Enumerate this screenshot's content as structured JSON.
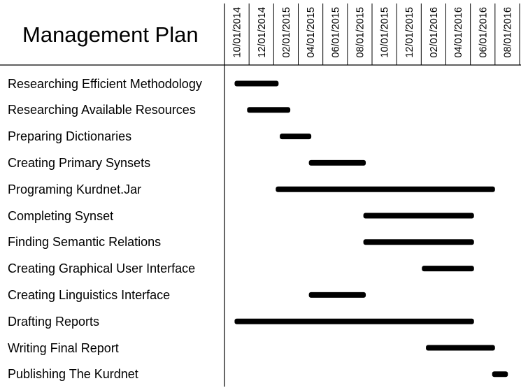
{
  "chart_data": {
    "type": "gantt",
    "title": "Management Plan",
    "xlim": [
      "2014-10-01",
      "2016-10-01"
    ],
    "tick_labels": [
      "10/01/2014",
      "12/01/2014",
      "02/01/2015",
      "04/01/2015",
      "06/01/2015",
      "08/01/2015",
      "10/01/2015",
      "12/01/2015",
      "02/01/2016",
      "04/01/2016",
      "06/01/2016",
      "08/01/2016"
    ],
    "bar_color": "#000000",
    "tasks": [
      {
        "name": "Researching Efficient Methodology",
        "start": "2014-10-26",
        "end": "2015-02-12"
      },
      {
        "name": "Researching Available Resources",
        "start": "2014-11-26",
        "end": "2015-03-13"
      },
      {
        "name": "Preparing Dictionaries",
        "start": "2015-02-15",
        "end": "2015-05-04"
      },
      {
        "name": "Creating Primary Synsets",
        "start": "2015-04-28",
        "end": "2015-09-16"
      },
      {
        "name": "Programing Kurdnet.Jar",
        "start": "2015-02-05",
        "end": "2016-08-01"
      },
      {
        "name": "Completing Synset",
        "start": "2015-09-10",
        "end": "2016-06-10"
      },
      {
        "name": "Finding Semantic Relations",
        "start": "2015-09-10",
        "end": "2016-06-10"
      },
      {
        "name": "Creating Graphical User Interface",
        "start": "2016-02-02",
        "end": "2016-06-10"
      },
      {
        "name": "Creating Linguistics Interface",
        "start": "2015-04-28",
        "end": "2015-09-16"
      },
      {
        "name": "Drafting Reports",
        "start": "2014-10-26",
        "end": "2016-06-10"
      },
      {
        "name": "Writing Final Report",
        "start": "2016-02-12",
        "end": "2016-08-01"
      },
      {
        "name": "Publishing The Kurdnet",
        "start": "2016-07-25",
        "end": "2016-09-02"
      }
    ]
  }
}
